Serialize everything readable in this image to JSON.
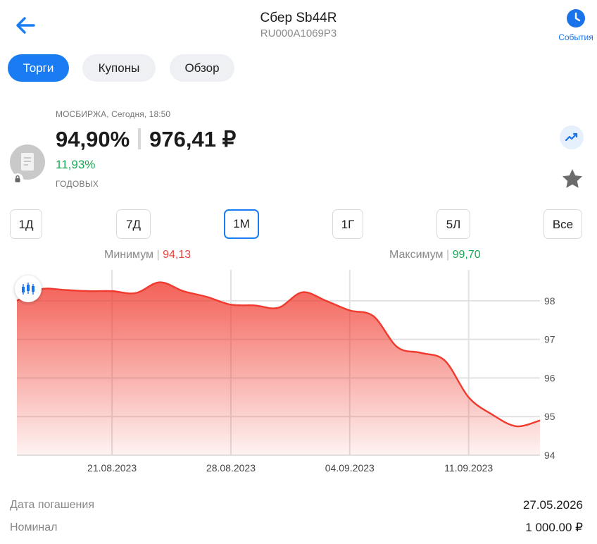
{
  "header": {
    "title": "Сбер Sb44R",
    "isin": "RU000A1069P3",
    "events_label": "События"
  },
  "tabs": [
    {
      "label": "Торги",
      "active": true
    },
    {
      "label": "Купоны",
      "active": false
    },
    {
      "label": "Обзор",
      "active": false
    }
  ],
  "quote": {
    "exchange_time": "МОСБИРЖА, Сегодня, 18:50",
    "price_percent": "94,90%",
    "price_rub": "976,41 ₽",
    "yield": "11,93%",
    "yield_label": "ГОДОВЫХ"
  },
  "periods": [
    {
      "label": "1Д",
      "active": false
    },
    {
      "label": "7Д",
      "active": false
    },
    {
      "label": "1М",
      "active": true
    },
    {
      "label": "1Г",
      "active": false
    },
    {
      "label": "5Л",
      "active": false
    },
    {
      "label": "Все",
      "active": false
    }
  ],
  "stats": {
    "min_label": "Минимум",
    "min_value": "94,13",
    "max_label": "Максимум",
    "max_value": "99,70"
  },
  "chart_data": {
    "type": "area",
    "x": [
      "15.08.2023",
      "16.08.2023",
      "17.08.2023",
      "18.08.2023",
      "21.08.2023",
      "22.08.2023",
      "23.08.2023",
      "24.08.2023",
      "25.08.2023",
      "28.08.2023",
      "29.08.2023",
      "30.08.2023",
      "31.08.2023",
      "01.09.2023",
      "04.09.2023",
      "05.09.2023",
      "06.09.2023",
      "07.09.2023",
      "08.09.2023",
      "11.09.2023",
      "12.09.2023",
      "13.09.2023",
      "14.09.2023"
    ],
    "series": [
      {
        "values": [
          98.0,
          98.3,
          98.28,
          98.25,
          98.25,
          98.2,
          98.48,
          98.25,
          98.1,
          97.9,
          97.88,
          97.82,
          98.22,
          98.0,
          97.75,
          97.6,
          96.8,
          96.65,
          96.45,
          95.5,
          95.05,
          94.75,
          94.9
        ],
        "color": "#f03a2e"
      }
    ],
    "x_ticks": [
      "21.08.2023",
      "28.08.2023",
      "04.09.2023",
      "11.09.2023"
    ],
    "y_ticks": [
      "98",
      "97",
      "96",
      "95",
      "94"
    ],
    "ylim": [
      94,
      98.8
    ],
    "grid": true,
    "xlabel": "",
    "ylabel": ""
  },
  "details": [
    {
      "label": "Дата погашения",
      "value": "27.05.2026"
    },
    {
      "label": "Номинал",
      "value": "1 000.00 ₽"
    }
  ],
  "colors": {
    "accent": "#1a7cf2",
    "positive": "#1aaa55",
    "negative": "#e8453c"
  },
  "icons": {
    "back": "arrow-left-icon",
    "events": "clock-icon",
    "trend": "trending-up-icon",
    "favorite": "star-icon",
    "lock": "lock-icon",
    "candles": "candlestick-icon",
    "bond": "document-icon"
  }
}
